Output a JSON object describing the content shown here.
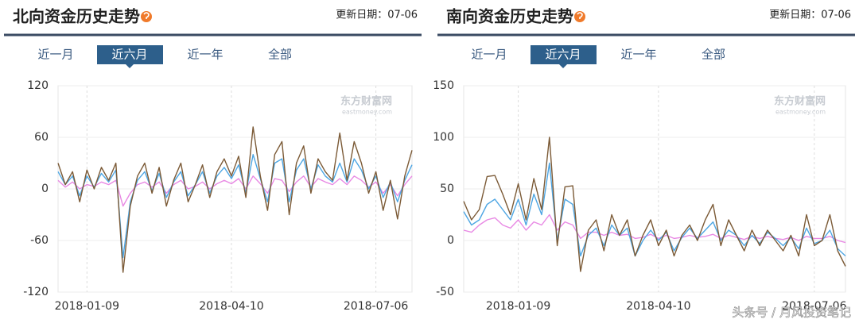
{
  "panels": [
    {
      "update": "更新日期：07-06",
      "tabs": [
        "近一月",
        "近六月",
        "近一年",
        "全部"
      ],
      "active_tab": 1,
      "watermark": "东方财富网",
      "watermark_sub": "eastmoney.com"
    },
    {
      "update": "更新日期：07-06",
      "tabs": [
        "近一月",
        "近六月",
        "近一年",
        "全部"
      ],
      "active_tab": 1,
      "watermark": "东方财富网",
      "watermark_sub": "eastmoney.com"
    }
  ],
  "chart_data": [
    {
      "type": "line",
      "title": "北向资金历史走势",
      "categories": [
        null,
        null,
        null,
        null,
        "2018-01-09",
        null,
        null,
        null,
        null,
        null,
        null,
        null,
        null,
        null,
        null,
        null,
        null,
        null,
        null,
        null,
        null,
        null,
        null,
        null,
        "2018-04-10",
        null,
        null,
        null,
        null,
        null,
        null,
        null,
        null,
        null,
        null,
        null,
        null,
        null,
        null,
        null,
        null,
        null,
        null,
        null,
        "2018-07-06",
        null,
        null,
        null,
        null,
        null
      ],
      "ylim": [
        -120,
        120
      ],
      "yticks": [
        -120,
        -60,
        0,
        60,
        120
      ],
      "grid": true,
      "series": [
        {
          "color": "#e889e4",
          "values": [
            10,
            2,
            8,
            0,
            5,
            3,
            8,
            5,
            10,
            -20,
            -5,
            5,
            8,
            2,
            8,
            -5,
            5,
            10,
            0,
            3,
            8,
            0,
            6,
            10,
            6,
            12,
            0,
            15,
            6,
            -5,
            12,
            10,
            -3,
            8,
            15,
            2,
            12,
            8,
            5,
            12,
            5,
            15,
            10,
            2,
            8,
            -5,
            5,
            -8,
            5,
            15
          ]
        },
        {
          "color": "#4ea6e3",
          "values": [
            20,
            5,
            15,
            -8,
            15,
            2,
            18,
            8,
            22,
            -80,
            -15,
            10,
            20,
            -2,
            18,
            -10,
            8,
            20,
            -8,
            5,
            20,
            -5,
            15,
            25,
            12,
            28,
            -5,
            40,
            12,
            -15,
            30,
            35,
            -15,
            22,
            35,
            0,
            28,
            15,
            8,
            30,
            8,
            35,
            22,
            0,
            15,
            -10,
            8,
            -15,
            10,
            28
          ]
        },
        {
          "color": "#7b5a36",
          "values": [
            30,
            5,
            20,
            -15,
            22,
            0,
            25,
            10,
            30,
            -97,
            -20,
            15,
            30,
            -5,
            25,
            -20,
            10,
            30,
            -15,
            5,
            28,
            -10,
            20,
            35,
            15,
            38,
            -10,
            72,
            15,
            -25,
            40,
            55,
            -30,
            30,
            50,
            -5,
            35,
            20,
            10,
            65,
            10,
            55,
            30,
            -5,
            20,
            -25,
            10,
            -35,
            15,
            45
          ]
        }
      ]
    },
    {
      "type": "line",
      "title": "南向资金历史走势",
      "categories": [
        null,
        null,
        null,
        null,
        null,
        null,
        null,
        "2018-01-09",
        null,
        null,
        null,
        null,
        null,
        null,
        null,
        null,
        null,
        null,
        null,
        null,
        null,
        null,
        null,
        null,
        null,
        "2018-04-10",
        null,
        null,
        null,
        null,
        null,
        null,
        null,
        null,
        null,
        null,
        null,
        null,
        null,
        null,
        null,
        null,
        null,
        null,
        null,
        "2018-07-06",
        null,
        null,
        null,
        null
      ],
      "ylim": [
        -50,
        150
      ],
      "yticks": [
        -50,
        0,
        50,
        100,
        150
      ],
      "grid": true,
      "series": [
        {
          "color": "#e889e4",
          "values": [
            10,
            8,
            15,
            20,
            22,
            15,
            12,
            20,
            10,
            18,
            15,
            25,
            10,
            18,
            15,
            2,
            8,
            8,
            5,
            8,
            5,
            6,
            2,
            3,
            6,
            2,
            5,
            2,
            3,
            5,
            3,
            4,
            6,
            2,
            5,
            3,
            1,
            4,
            2,
            4,
            2,
            1,
            3,
            0,
            4,
            2,
            2,
            4,
            0,
            -2
          ]
        },
        {
          "color": "#4ea6e3",
          "values": [
            28,
            15,
            20,
            35,
            40,
            30,
            20,
            40,
            15,
            45,
            25,
            75,
            0,
            40,
            35,
            -15,
            5,
            12,
            -5,
            15,
            5,
            12,
            -15,
            0,
            10,
            0,
            8,
            -10,
            3,
            12,
            2,
            10,
            18,
            0,
            10,
            5,
            -5,
            5,
            -3,
            8,
            2,
            -5,
            3,
            -8,
            12,
            -3,
            0,
            10,
            -8,
            -15
          ]
        },
        {
          "color": "#7b5a36",
          "values": [
            38,
            20,
            30,
            62,
            63,
            45,
            25,
            55,
            20,
            60,
            30,
            100,
            -5,
            52,
            53,
            -30,
            10,
            20,
            -10,
            25,
            5,
            20,
            -15,
            5,
            20,
            -5,
            10,
            -15,
            5,
            15,
            0,
            20,
            35,
            -5,
            20,
            5,
            -10,
            10,
            -5,
            10,
            0,
            -10,
            5,
            -15,
            25,
            -5,
            0,
            25,
            -10,
            -25
          ]
        }
      ]
    }
  ],
  "footer_watermark": "头条号 / 月风投资笔记"
}
